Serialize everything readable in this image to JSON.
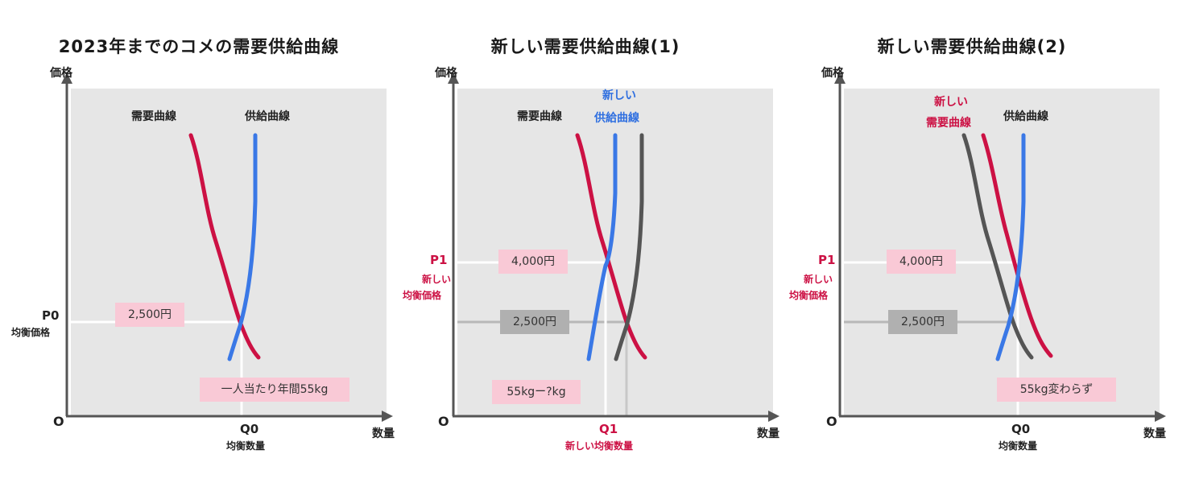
{
  "panels": [
    {
      "title": "2023年までのコメの需要供給曲線",
      "y_axis_label": "価格",
      "x_axis_label": "数量",
      "origin_label": "O",
      "curve_labels": {
        "demand": "需要曲線",
        "supply": "供給曲線"
      },
      "price_label": "P0",
      "price_sublabel": "均衡価格",
      "quantity_label": "Q0",
      "quantity_sublabel": "均衡数量",
      "price_box": "2,500円",
      "quantity_box": "一人当たり年間55kg"
    },
    {
      "title": "新しい需要供給曲線(1)",
      "y_axis_label": "価格",
      "x_axis_label": "数量",
      "origin_label": "O",
      "curve_labels": {
        "demand": "需要曲線",
        "new_supply_line1": "新しい",
        "new_supply_line2": "供給曲線"
      },
      "price_label": "P1",
      "price_sublabel_line1": "新しい",
      "price_sublabel_line2": "均衡価格",
      "quantity_label": "Q1",
      "quantity_sublabel": "新しい均衡数量",
      "price_box_new": "4,000円",
      "price_box_old": "2,500円",
      "quantity_box": "55kgー?kg"
    },
    {
      "title": "新しい需要供給曲線(2)",
      "y_axis_label": "価格",
      "x_axis_label": "数量",
      "origin_label": "O",
      "curve_labels": {
        "new_demand_line1": "新しい",
        "new_demand_line2": "需要曲線",
        "supply": "供給曲線"
      },
      "price_label": "P1",
      "price_sublabel_line1": "新しい",
      "price_sublabel_line2": "均衡価格",
      "quantity_label": "Q0",
      "quantity_sublabel": "均衡数量",
      "price_box_new": "4,000円",
      "price_box_old": "2,500円",
      "quantity_box": "55kg変わらず"
    }
  ],
  "colors": {
    "demand": "#cc1144",
    "supply": "#3a78e6",
    "shifted": "#555555",
    "background": "#e6e6e6",
    "pink_box": "#f9c9d6",
    "gray_box": "#b0b0b0"
  }
}
